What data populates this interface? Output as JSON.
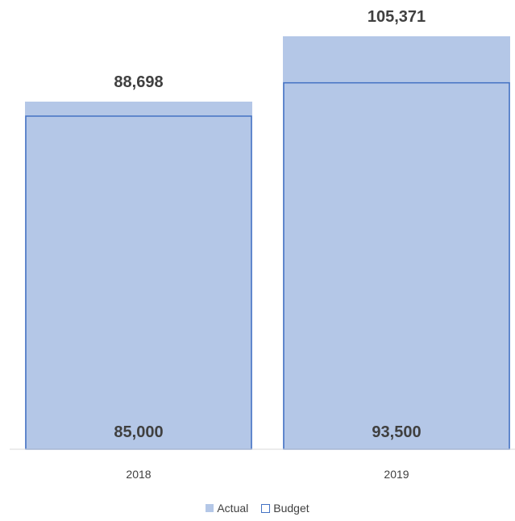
{
  "chart_data": {
    "type": "bar",
    "categories": [
      "2018",
      "2019"
    ],
    "series": [
      {
        "name": "Actual",
        "values": [
          88698,
          105371
        ],
        "labels": [
          "88,698",
          "105,371"
        ],
        "color": "#b4c7e7"
      },
      {
        "name": "Budget",
        "values": [
          85000,
          93500
        ],
        "labels": [
          "85,000",
          "93,500"
        ],
        "color": "#4472c4"
      }
    ],
    "title": "",
    "xlabel": "",
    "ylabel": "",
    "ylim": [
      0,
      110000
    ],
    "grid": false,
    "legend": "bottom"
  }
}
